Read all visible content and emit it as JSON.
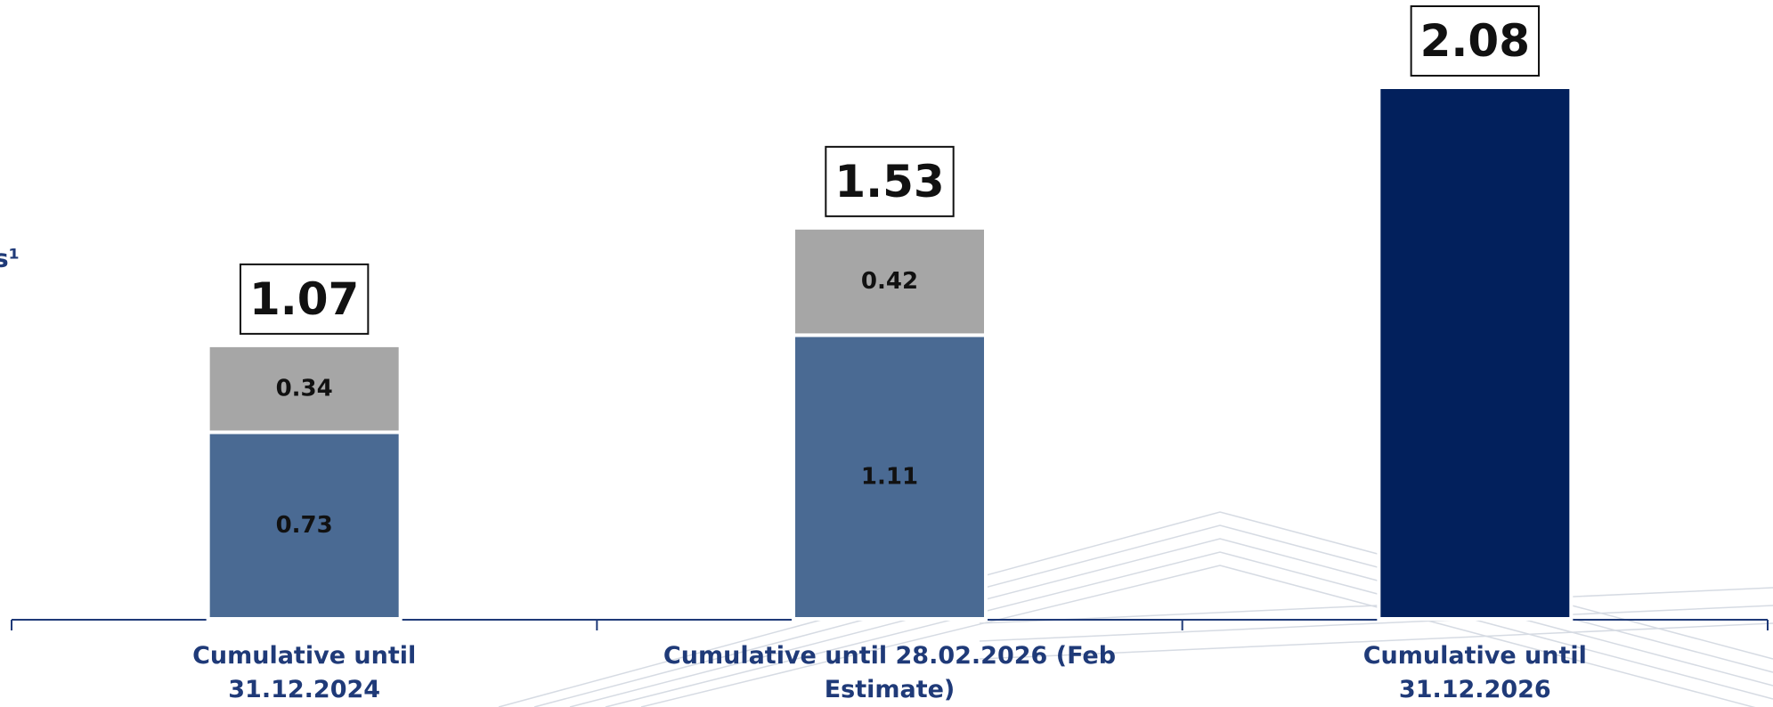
{
  "chart_data": {
    "type": "stacked_bar",
    "annotation": "es¹",
    "categories": [
      "Cumulative until\n31.12.2024",
      "Cumulative until 28.02.2026 (Feb Estimate)",
      "Cumulative until\n31.12.2026"
    ],
    "series": [
      {
        "color": "#4a6a93",
        "values": [
          0.73,
          1.11,
          null
        ]
      },
      {
        "color": "#a6a6a6",
        "values": [
          0.34,
          0.42,
          null
        ]
      },
      {
        "color": "#02205c",
        "values": [
          null,
          null,
          2.08
        ]
      }
    ],
    "totals": [
      1.07,
      1.53,
      2.08
    ]
  }
}
